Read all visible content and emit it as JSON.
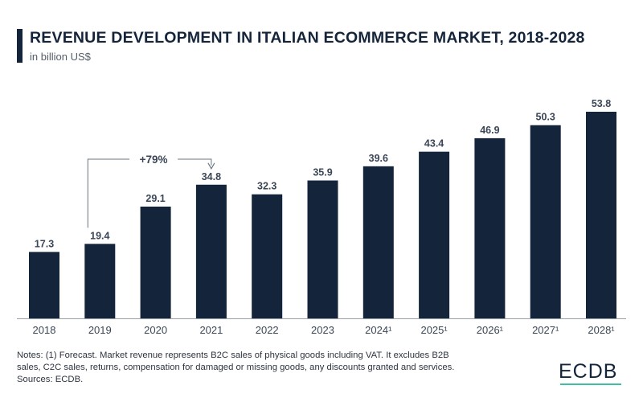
{
  "header": {
    "title": "REVENUE DEVELOPMENT IN ITALIAN ECOMMERCE MARKET, 2018-2028",
    "subtitle": "in billion US$"
  },
  "chart_data": {
    "type": "bar",
    "title": "REVENUE DEVELOPMENT IN ITALIAN ECOMMERCE MARKET, 2018-2028",
    "ylabel": "in billion US$",
    "categories": [
      "2018",
      "2019",
      "2020",
      "2021",
      "2022",
      "2023",
      "2024¹",
      "2025¹",
      "2026¹",
      "2027¹",
      "2028¹"
    ],
    "values": [
      17.3,
      19.4,
      29.1,
      34.8,
      32.3,
      35.9,
      39.6,
      43.4,
      46.9,
      50.3,
      53.8
    ],
    "value_labels": [
      "17.3",
      "19.4",
      "29.1",
      "34.8",
      "32.3",
      "35.9",
      "39.6",
      "43.4",
      "46.9",
      "50.3",
      "53.8"
    ],
    "ylim": [
      0,
      53.8
    ],
    "grid": false,
    "bar_color": "#14243b",
    "annotation": {
      "text": "+79%",
      "from_category": "2019",
      "to_category": "2021"
    }
  },
  "footer": {
    "notes": [
      "Notes: (1) Forecast. Market revenue represents B2C sales of physical goods including VAT. It excludes B2B",
      "sales, C2C sales, returns, compensation for damaged or missing goods, any discounts granted and services.",
      "Sources: ECDB."
    ],
    "logo": "ECDB",
    "accent_color": "#3fbfa0"
  }
}
